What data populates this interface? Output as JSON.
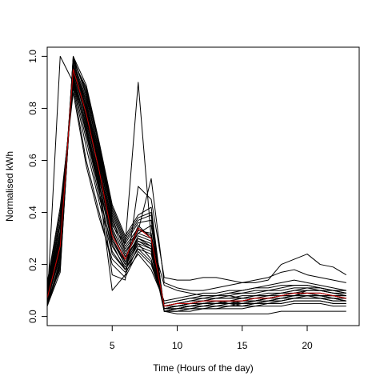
{
  "chart_data": {
    "type": "line",
    "title": "",
    "xlabel": "Time (Hours of the day)",
    "ylabel": "Normalised kWh",
    "xlim": [
      0,
      24
    ],
    "ylim": [
      -0.035,
      1.035
    ],
    "xticks": [
      5,
      10,
      15,
      20
    ],
    "yticks": [
      0.0,
      0.2,
      0.4,
      0.6,
      0.8,
      1.0
    ],
    "ytick_labels": [
      "0.0",
      "0.2",
      "0.4",
      "0.6",
      "0.8",
      "1.0"
    ],
    "xtick_labels": [
      "5",
      "10",
      "15",
      "20"
    ],
    "grid": false,
    "legend": "none",
    "colors": {
      "series": "#000000",
      "mean": "#cc0000"
    },
    "x": [
      0,
      1,
      2,
      3,
      4,
      5,
      6,
      7,
      8,
      9,
      10,
      11,
      12,
      13,
      14,
      15,
      16,
      17,
      18,
      19,
      20,
      21,
      22,
      23
    ],
    "series": [
      {
        "values": [
          0.05,
          0.25,
          0.99,
          0.8,
          0.58,
          0.32,
          0.22,
          0.35,
          0.3,
          0.02,
          0.03,
          0.04,
          0.05,
          0.05,
          0.06,
          0.05,
          0.06,
          0.07,
          0.08,
          0.09,
          0.09,
          0.08,
          0.08,
          0.07
        ]
      },
      {
        "values": [
          0.08,
          0.3,
          0.96,
          0.75,
          0.55,
          0.3,
          0.2,
          0.3,
          0.28,
          0.03,
          0.04,
          0.05,
          0.06,
          0.06,
          0.05,
          0.04,
          0.05,
          0.06,
          0.07,
          0.08,
          0.1,
          0.1,
          0.09,
          0.08
        ]
      },
      {
        "values": [
          0.04,
          0.2,
          1.0,
          0.85,
          0.62,
          0.38,
          0.25,
          0.32,
          0.35,
          0.02,
          0.02,
          0.03,
          0.03,
          0.04,
          0.04,
          0.05,
          0.05,
          0.05,
          0.06,
          0.07,
          0.08,
          0.08,
          0.07,
          0.06
        ]
      },
      {
        "values": [
          0.1,
          0.35,
          0.92,
          0.7,
          0.48,
          0.25,
          0.18,
          0.28,
          0.22,
          0.04,
          0.05,
          0.06,
          0.07,
          0.07,
          0.08,
          0.07,
          0.08,
          0.08,
          0.09,
          0.1,
          0.11,
          0.11,
          0.1,
          0.09
        ]
      },
      {
        "values": [
          0.06,
          0.18,
          0.98,
          0.88,
          0.66,
          0.42,
          0.3,
          0.38,
          0.4,
          0.03,
          0.04,
          0.04,
          0.05,
          0.05,
          0.05,
          0.06,
          0.06,
          0.07,
          0.08,
          0.09,
          0.09,
          0.09,
          0.08,
          0.08
        ]
      },
      {
        "values": [
          0.12,
          0.4,
          0.88,
          0.6,
          0.4,
          0.2,
          0.15,
          0.25,
          0.2,
          0.05,
          0.06,
          0.07,
          0.08,
          0.08,
          0.09,
          0.09,
          0.1,
          0.1,
          0.11,
          0.12,
          0.12,
          0.11,
          0.1,
          0.1
        ]
      },
      {
        "values": [
          0.04,
          0.22,
          0.97,
          0.82,
          0.6,
          0.35,
          0.28,
          0.9,
          0.3,
          0.02,
          0.03,
          0.03,
          0.04,
          0.04,
          0.04,
          0.04,
          0.05,
          0.05,
          0.05,
          0.06,
          0.06,
          0.06,
          0.05,
          0.05
        ]
      },
      {
        "values": [
          0.07,
          0.28,
          0.95,
          0.78,
          0.56,
          0.34,
          0.23,
          0.3,
          0.27,
          0.03,
          0.04,
          0.05,
          0.05,
          0.06,
          0.06,
          0.06,
          0.07,
          0.07,
          0.08,
          0.08,
          0.09,
          0.08,
          0.08,
          0.07
        ]
      },
      {
        "values": [
          0.05,
          1.0,
          0.9,
          0.72,
          0.5,
          0.28,
          0.18,
          0.26,
          0.24,
          0.03,
          0.03,
          0.04,
          0.04,
          0.05,
          0.05,
          0.05,
          0.05,
          0.06,
          0.06,
          0.07,
          0.07,
          0.07,
          0.06,
          0.06
        ]
      },
      {
        "values": [
          0.09,
          0.32,
          0.93,
          0.74,
          0.52,
          0.16,
          0.14,
          0.5,
          0.45,
          0.15,
          0.14,
          0.14,
          0.15,
          0.15,
          0.14,
          0.13,
          0.13,
          0.14,
          0.2,
          0.22,
          0.24,
          0.2,
          0.19,
          0.16
        ]
      },
      {
        "values": [
          0.06,
          0.24,
          0.99,
          0.86,
          0.63,
          0.39,
          0.27,
          0.34,
          0.31,
          0.02,
          0.03,
          0.04,
          0.04,
          0.05,
          0.05,
          0.05,
          0.06,
          0.07,
          0.08,
          0.08,
          0.08,
          0.08,
          0.07,
          0.07
        ]
      },
      {
        "values": [
          0.11,
          0.36,
          0.9,
          0.68,
          0.46,
          0.27,
          0.19,
          0.29,
          0.26,
          0.04,
          0.05,
          0.06,
          0.06,
          0.07,
          0.07,
          0.08,
          0.08,
          0.09,
          0.09,
          0.1,
          0.1,
          0.1,
          0.09,
          0.09
        ]
      },
      {
        "values": [
          0.05,
          0.21,
          0.96,
          0.81,
          0.59,
          0.37,
          0.26,
          0.33,
          0.53,
          0.13,
          0.11,
          0.1,
          0.1,
          0.11,
          0.12,
          0.13,
          0.14,
          0.15,
          0.17,
          0.18,
          0.16,
          0.15,
          0.14,
          0.13
        ]
      },
      {
        "values": [
          0.08,
          0.27,
          0.94,
          0.77,
          0.54,
          0.33,
          0.21,
          0.31,
          0.29,
          0.03,
          0.04,
          0.05,
          0.05,
          0.05,
          0.06,
          0.06,
          0.06,
          0.07,
          0.07,
          0.08,
          0.08,
          0.08,
          0.07,
          0.07
        ]
      },
      {
        "values": [
          0.04,
          0.19,
          0.98,
          0.84,
          0.64,
          0.4,
          0.28,
          0.36,
          0.37,
          0.02,
          0.02,
          0.03,
          0.03,
          0.03,
          0.04,
          0.04,
          0.04,
          0.05,
          0.05,
          0.06,
          0.06,
          0.06,
          0.05,
          0.05
        ]
      },
      {
        "values": [
          0.13,
          0.42,
          0.86,
          0.58,
          0.38,
          0.22,
          0.17,
          0.24,
          0.18,
          0.06,
          0.07,
          0.08,
          0.09,
          0.09,
          0.1,
          0.1,
          0.11,
          0.11,
          0.12,
          0.12,
          0.12,
          0.11,
          0.1,
          0.1
        ]
      },
      {
        "values": [
          0.06,
          0.23,
          0.97,
          0.83,
          0.61,
          0.36,
          0.24,
          0.33,
          0.32,
          0.03,
          0.03,
          0.04,
          0.05,
          0.05,
          0.05,
          0.06,
          0.06,
          0.06,
          0.07,
          0.07,
          0.08,
          0.07,
          0.07,
          0.06
        ]
      },
      {
        "values": [
          0.07,
          0.26,
          0.95,
          0.79,
          0.57,
          0.31,
          0.22,
          0.3,
          0.28,
          0.04,
          0.04,
          0.05,
          0.06,
          0.06,
          0.06,
          0.07,
          0.07,
          0.08,
          0.08,
          0.09,
          0.09,
          0.09,
          0.08,
          0.08
        ]
      },
      {
        "values": [
          0.1,
          0.33,
          0.91,
          0.71,
          0.49,
          0.1,
          0.16,
          0.27,
          0.25,
          0.02,
          0.01,
          0.01,
          0.01,
          0.01,
          0.01,
          0.01,
          0.01,
          0.01,
          0.02,
          0.02,
          0.02,
          0.02,
          0.02,
          0.02
        ]
      },
      {
        "values": [
          0.05,
          0.2,
          0.99,
          0.87,
          0.65,
          0.41,
          0.29,
          0.37,
          0.39,
          0.03,
          0.03,
          0.04,
          0.04,
          0.04,
          0.05,
          0.05,
          0.05,
          0.06,
          0.06,
          0.07,
          0.07,
          0.07,
          0.06,
          0.06
        ]
      },
      {
        "values": [
          0.09,
          0.31,
          0.92,
          0.73,
          0.51,
          0.29,
          0.2,
          0.28,
          0.26,
          0.04,
          0.05,
          0.05,
          0.06,
          0.07,
          0.07,
          0.07,
          0.08,
          0.08,
          0.09,
          0.09,
          0.1,
          0.1,
          0.09,
          0.08
        ]
      },
      {
        "values": [
          0.06,
          0.25,
          0.96,
          0.8,
          0.58,
          0.34,
          0.23,
          0.32,
          0.3,
          0.12,
          0.1,
          0.09,
          0.08,
          0.08,
          0.09,
          0.1,
          0.11,
          0.12,
          0.13,
          0.14,
          0.13,
          0.12,
          0.11,
          0.1
        ]
      },
      {
        "values": [
          0.08,
          0.29,
          0.94,
          0.76,
          0.53,
          0.3,
          0.21,
          0.29,
          0.27,
          0.03,
          0.04,
          0.05,
          0.05,
          0.06,
          0.06,
          0.06,
          0.07,
          0.07,
          0.08,
          0.08,
          0.09,
          0.08,
          0.08,
          0.07
        ]
      },
      {
        "values": [
          0.04,
          0.17,
          1.0,
          0.89,
          0.67,
          0.43,
          0.31,
          0.39,
          0.42,
          0.02,
          0.02,
          0.02,
          0.03,
          0.03,
          0.03,
          0.03,
          0.04,
          0.04,
          0.04,
          0.05,
          0.05,
          0.05,
          0.04,
          0.04
        ]
      },
      {
        "values": [
          0.11,
          0.38,
          0.89,
          0.65,
          0.44,
          0.24,
          0.18,
          0.26,
          0.21,
          0.05,
          0.06,
          0.07,
          0.07,
          0.08,
          0.08,
          0.09,
          0.09,
          0.1,
          0.1,
          0.11,
          0.11,
          0.1,
          0.1,
          0.09
        ]
      }
    ],
    "mean": {
      "values": [
        0.07,
        0.27,
        0.95,
        0.78,
        0.56,
        0.31,
        0.22,
        0.34,
        0.3,
        0.04,
        0.05,
        0.05,
        0.06,
        0.06,
        0.06,
        0.06,
        0.07,
        0.07,
        0.08,
        0.09,
        0.09,
        0.09,
        0.08,
        0.07
      ]
    }
  }
}
